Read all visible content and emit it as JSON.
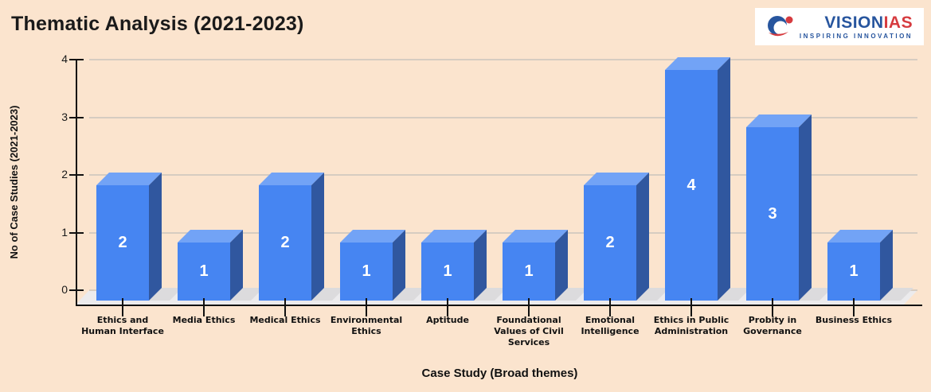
{
  "header": {
    "title": "Thematic Analysis (2021-2023)"
  },
  "logo": {
    "brand_primary": "VISION",
    "brand_secondary": "IAS",
    "tagline": "INSPIRING  INNOVATION",
    "colors": {
      "blue": "#27559E",
      "red": "#D63B3F"
    }
  },
  "chart_data": {
    "type": "bar",
    "variant": "3d-column",
    "title": "Thematic Analysis (2021-2023)",
    "categories": [
      "Ethics and Human Interface",
      "Media Ethics",
      "Medical Ethics",
      "Environmental Ethics",
      "Aptitude",
      "Foundational Values of Civil Services",
      "Emotional Intelligence",
      "Ethics in Public Administration",
      "Probity in Governance",
      "Business Ethics"
    ],
    "values": [
      2,
      1,
      2,
      1,
      1,
      1,
      2,
      4,
      3,
      1
    ],
    "xlabel": "Case Study (Broad themes)",
    "ylabel": "No of Case Studies (2021-2023)",
    "yticks": [
      0,
      1,
      2,
      3,
      4
    ],
    "ylim": [
      0,
      4
    ],
    "grid": true,
    "legend_position": "none",
    "bar_value_labels_visible": true,
    "colors": {
      "background": "#FBE4CE",
      "bar_front": "#4685F2",
      "bar_top": "#72A3F6",
      "bar_side": "#30579F",
      "value_label": "#FFFFFF",
      "gridline": "#D6CCC1",
      "axis": "#111111",
      "floor": "#ECEBED",
      "bar_shadow": "#DCDBDD"
    }
  }
}
